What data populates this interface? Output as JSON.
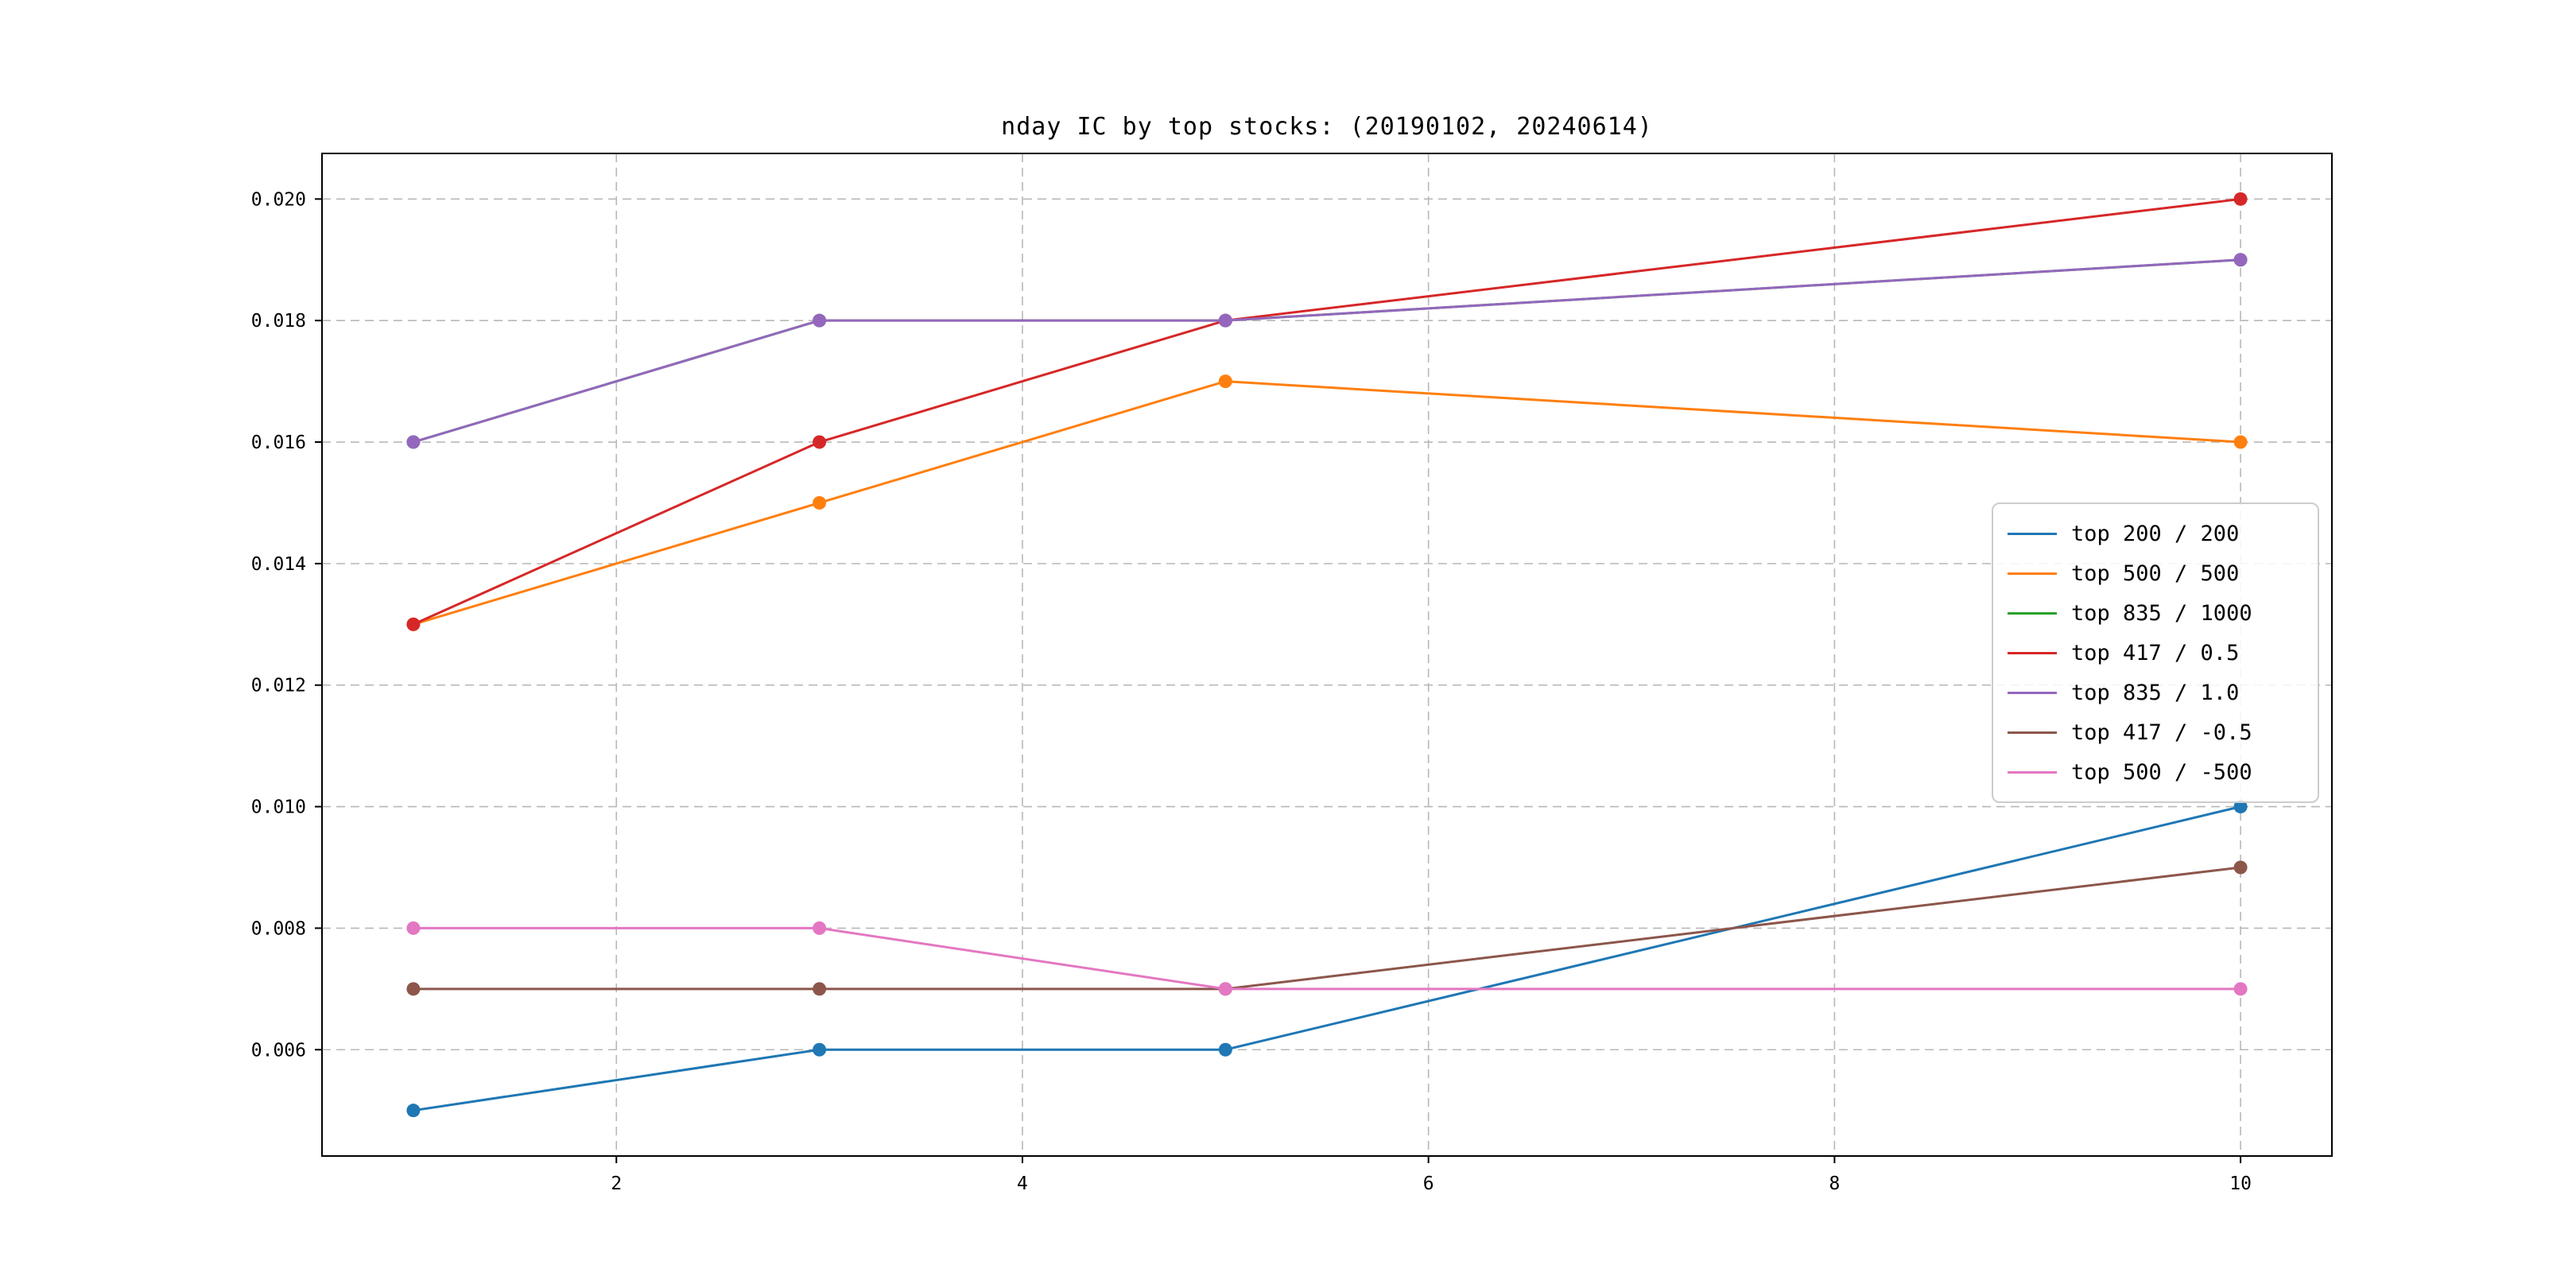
{
  "figure": {
    "background": "#ffffff"
  },
  "chart_data": {
    "type": "line",
    "title": "nday IC by top stocks: (20190102, 20240614)",
    "xlabel": "",
    "ylabel": "",
    "x": [
      1,
      3,
      5,
      10
    ],
    "series": [
      {
        "name": "top 200 / 200",
        "color": "#1f77b4",
        "values": [
          0.005,
          0.006,
          0.006,
          0.01
        ]
      },
      {
        "name": "top 500 / 500",
        "color": "#ff7f0e",
        "values": [
          0.013,
          0.015,
          0.017,
          0.016
        ]
      },
      {
        "name": "top 835 / 1000",
        "color": "#2ca02c",
        "values": [
          0.016,
          0.018,
          0.018,
          0.019
        ]
      },
      {
        "name": "top 417 / 0.5",
        "color": "#d62728",
        "values": [
          0.013,
          0.016,
          0.018,
          0.02
        ]
      },
      {
        "name": "top 835 / 1.0",
        "color": "#9467bd",
        "values": [
          0.016,
          0.018,
          0.018,
          0.019
        ]
      },
      {
        "name": "top 417 / -0.5",
        "color": "#8c564b",
        "values": [
          0.007,
          0.007,
          0.007,
          0.009
        ]
      },
      {
        "name": "top 500 / -500",
        "color": "#e377c2",
        "values": [
          0.008,
          0.008,
          0.007,
          0.007
        ]
      }
    ],
    "xticks": [
      2,
      4,
      6,
      8,
      10
    ],
    "yticks": [
      0.006,
      0.008,
      0.01,
      0.012,
      0.014,
      0.016,
      0.018,
      0.02
    ],
    "xlim": [
      0.55,
      10.45
    ],
    "ylim": [
      0.00425,
      0.02075
    ],
    "grid": true,
    "grid_style": "dashed",
    "legend_position": "center right",
    "marker": "circle"
  }
}
